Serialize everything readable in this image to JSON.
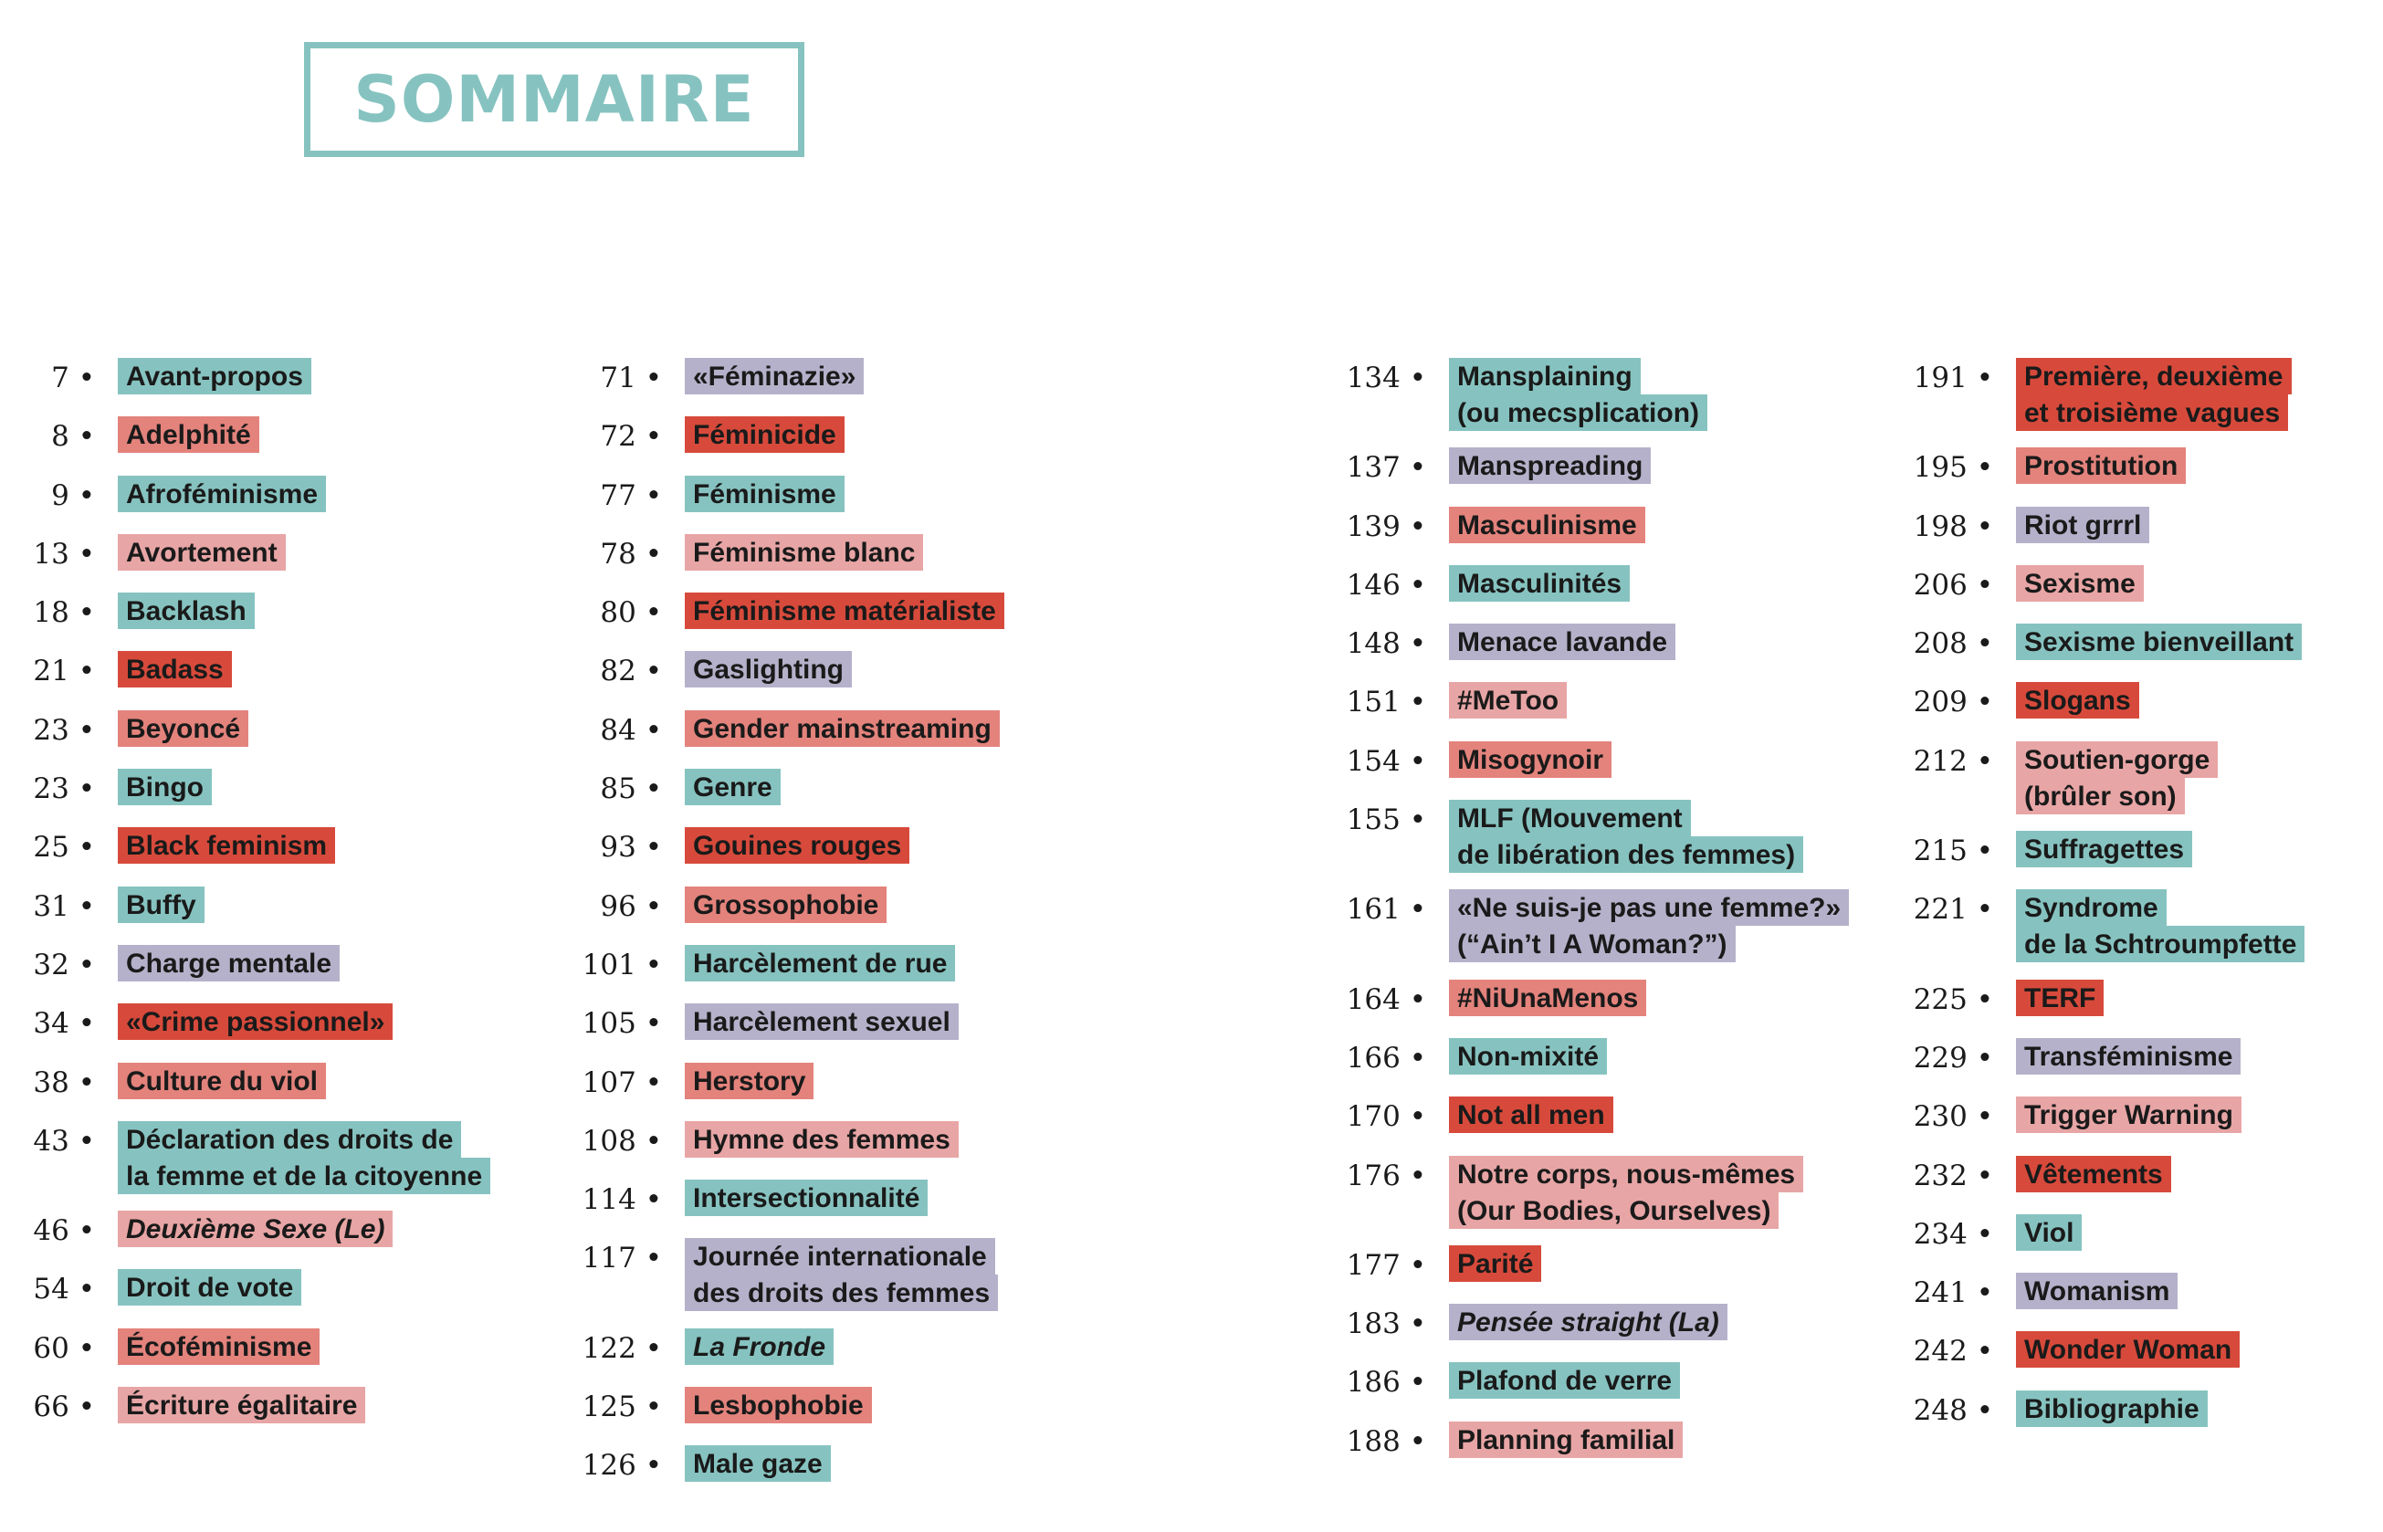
{
  "title": "SOMMAIRE",
  "columns": [
    [
      {
        "page": "7",
        "lines": [
          "Avant-propos"
        ],
        "color": "teal"
      },
      {
        "page": "8",
        "lines": [
          "Adelphité"
        ],
        "color": "salmon"
      },
      {
        "page": "9",
        "lines": [
          "Afroféminisme"
        ],
        "color": "teal"
      },
      {
        "page": "13",
        "lines": [
          "Avortement"
        ],
        "color": "pink"
      },
      {
        "page": "18",
        "lines": [
          "Backlash"
        ],
        "color": "teal"
      },
      {
        "page": "21",
        "lines": [
          "Badass"
        ],
        "color": "red"
      },
      {
        "page": "23",
        "lines": [
          "Beyoncé"
        ],
        "color": "salmon"
      },
      {
        "page": "23",
        "lines": [
          "Bingo"
        ],
        "color": "teal"
      },
      {
        "page": "25",
        "lines": [
          "Black feminism"
        ],
        "color": "red"
      },
      {
        "page": "31",
        "lines": [
          "Buffy"
        ],
        "color": "teal"
      },
      {
        "page": "32",
        "lines": [
          "Charge mentale"
        ],
        "color": "lav"
      },
      {
        "page": "34",
        "lines": [
          "«Crime passionnel»"
        ],
        "color": "red"
      },
      {
        "page": "38",
        "lines": [
          "Culture du viol"
        ],
        "color": "salmon"
      },
      {
        "page": "43",
        "lines": [
          "Déclaration des droits de",
          "la femme et de la citoyenne"
        ],
        "color": "teal"
      },
      {
        "page": "46",
        "lines": [
          "Deuxième Sexe (Le)"
        ],
        "color": "pink",
        "italic": true
      },
      {
        "page": "54",
        "lines": [
          "Droit de vote"
        ],
        "color": "teal"
      },
      {
        "page": "60",
        "lines": [
          "Écoféminisme"
        ],
        "color": "salmon"
      },
      {
        "page": "66",
        "lines": [
          "Écriture égalitaire"
        ],
        "color": "pink"
      }
    ],
    [
      {
        "page": "71",
        "lines": [
          "«Féminazie»"
        ],
        "color": "lav"
      },
      {
        "page": "72",
        "lines": [
          "Féminicide"
        ],
        "color": "red"
      },
      {
        "page": "77",
        "lines": [
          "Féminisme"
        ],
        "color": "teal"
      },
      {
        "page": "78",
        "lines": [
          "Féminisme blanc"
        ],
        "color": "pink"
      },
      {
        "page": "80",
        "lines": [
          "Féminisme matérialiste"
        ],
        "color": "red"
      },
      {
        "page": "82",
        "lines": [
          "Gaslighting"
        ],
        "color": "lav"
      },
      {
        "page": "84",
        "lines": [
          "Gender mainstreaming"
        ],
        "color": "salmon"
      },
      {
        "page": "85",
        "lines": [
          "Genre"
        ],
        "color": "teal"
      },
      {
        "page": "93",
        "lines": [
          "Gouines rouges"
        ],
        "color": "red"
      },
      {
        "page": "96",
        "lines": [
          "Grossophobie"
        ],
        "color": "salmon"
      },
      {
        "page": "101",
        "lines": [
          "Harcèlement de rue"
        ],
        "color": "teal"
      },
      {
        "page": "105",
        "lines": [
          "Harcèlement sexuel"
        ],
        "color": "lav"
      },
      {
        "page": "107",
        "lines": [
          "Herstory"
        ],
        "color": "salmon"
      },
      {
        "page": "108",
        "lines": [
          "Hymne des femmes"
        ],
        "color": "pink"
      },
      {
        "page": "114",
        "lines": [
          "Intersectionnalité"
        ],
        "color": "teal"
      },
      {
        "page": "117",
        "lines": [
          "Journée internationale",
          "des droits des femmes"
        ],
        "color": "lav"
      },
      {
        "page": "122",
        "lines": [
          "La Fronde"
        ],
        "color": "teal",
        "italic": true
      },
      {
        "page": "125",
        "lines": [
          "Lesbophobie"
        ],
        "color": "salmon"
      },
      {
        "page": "126",
        "lines": [
          "Male gaze"
        ],
        "color": "teal"
      }
    ],
    [
      {
        "page": "134",
        "lines": [
          "Mansplaining",
          "(ou mecsplication)"
        ],
        "color": "teal"
      },
      {
        "page": "137",
        "lines": [
          "Manspreading"
        ],
        "color": "lav"
      },
      {
        "page": "139",
        "lines": [
          "Masculinisme"
        ],
        "color": "salmon"
      },
      {
        "page": "146",
        "lines": [
          "Masculinités"
        ],
        "color": "teal"
      },
      {
        "page": "148",
        "lines": [
          "Menace lavande"
        ],
        "color": "lav"
      },
      {
        "page": "151",
        "lines": [
          "#MeToo"
        ],
        "color": "pink"
      },
      {
        "page": "154",
        "lines": [
          "Misogynoir"
        ],
        "color": "salmon"
      },
      {
        "page": "155",
        "lines": [
          "MLF (Mouvement",
          "de libération des femmes)"
        ],
        "color": "teal"
      },
      {
        "page": "161",
        "lines": [
          "«Ne suis-je pas une femme?»",
          "(“Ain’t I A Woman?”)"
        ],
        "color": "lav"
      },
      {
        "page": "164",
        "lines": [
          "#NiUnaMenos"
        ],
        "color": "salmon"
      },
      {
        "page": "166",
        "lines": [
          "Non-mixité"
        ],
        "color": "teal"
      },
      {
        "page": "170",
        "lines": [
          "Not all men"
        ],
        "color": "red"
      },
      {
        "page": "176",
        "lines": [
          "Notre corps, nous-mêmes",
          "(Our Bodies, Ourselves)"
        ],
        "color": "pink"
      },
      {
        "page": "177",
        "lines": [
          "Parité"
        ],
        "color": "red"
      },
      {
        "page": "183",
        "lines": [
          "Pensée straight (La)"
        ],
        "color": "lav",
        "italic": true
      },
      {
        "page": "186",
        "lines": [
          "Plafond de verre"
        ],
        "color": "teal"
      },
      {
        "page": "188",
        "lines": [
          "Planning familial"
        ],
        "color": "pink"
      }
    ],
    [
      {
        "page": "191",
        "lines": [
          "Première, deuxième",
          "et troisième vagues"
        ],
        "color": "red"
      },
      {
        "page": "195",
        "lines": [
          "Prostitution"
        ],
        "color": "salmon"
      },
      {
        "page": "198",
        "lines": [
          "Riot grrrl"
        ],
        "color": "lav"
      },
      {
        "page": "206",
        "lines": [
          "Sexisme"
        ],
        "color": "pink"
      },
      {
        "page": "208",
        "lines": [
          "Sexisme bienveillant"
        ],
        "color": "teal"
      },
      {
        "page": "209",
        "lines": [
          "Slogans"
        ],
        "color": "red"
      },
      {
        "page": "212",
        "lines": [
          "Soutien-gorge",
          "(brûler son)"
        ],
        "color": "pink"
      },
      {
        "page": "215",
        "lines": [
          "Suffragettes"
        ],
        "color": "teal"
      },
      {
        "page": "221",
        "lines": [
          "Syndrome",
          "de la Schtroumpfette"
        ],
        "color": "teal"
      },
      {
        "page": "225",
        "lines": [
          "TERF"
        ],
        "color": "red"
      },
      {
        "page": "229",
        "lines": [
          "Transféminisme"
        ],
        "color": "lav"
      },
      {
        "page": "230",
        "lines": [
          "Trigger Warning"
        ],
        "color": "pink"
      },
      {
        "page": "232",
        "lines": [
          "Vêtements"
        ],
        "color": "red"
      },
      {
        "page": "234",
        "lines": [
          "Viol"
        ],
        "color": "teal"
      },
      {
        "page": "241",
        "lines": [
          "Womanism"
        ],
        "color": "lav"
      },
      {
        "page": "242",
        "lines": [
          "Wonder Woman"
        ],
        "color": "red"
      },
      {
        "page": "248",
        "lines": [
          "Bibliographie"
        ],
        "color": "teal"
      }
    ]
  ],
  "colors": {
    "teal": "#86c3c0",
    "lav": "#b6b1ca",
    "salmon": "#e3837c",
    "pink": "#e8a5a5",
    "red": "#d74a3b"
  }
}
